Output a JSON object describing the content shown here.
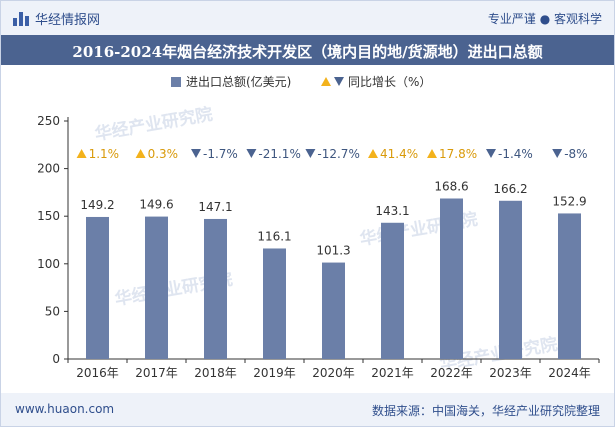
{
  "header": {
    "brand": "华经情报网",
    "tagline": "专业严谨 ● 客观科学"
  },
  "watermark": "华经产业研究院",
  "chart_data": {
    "type": "bar",
    "title": "2016-2024年烟台经济技术开发区（境内目的地/货源地）进出口总额",
    "categories": [
      "2016年",
      "2017年",
      "2018年",
      "2019年",
      "2020年",
      "2021年",
      "2022年",
      "2023年",
      "2024年"
    ],
    "series": [
      {
        "name": "进出口总额(亿美元)",
        "values": [
          149.2,
          149.6,
          147.1,
          116.1,
          101.3,
          143.1,
          168.6,
          166.2,
          152.9
        ]
      }
    ],
    "growth": {
      "name": "同比增长（%）",
      "labels": [
        "1.1%",
        "0.3%",
        "-1.7%",
        "-21.1%",
        "-12.7%",
        "41.4%",
        "17.8%",
        "-1.4%",
        "-8%"
      ],
      "directions": [
        "up",
        "up",
        "down",
        "down",
        "down",
        "up",
        "up",
        "down",
        "down"
      ]
    },
    "yticks": [
      0,
      50,
      100,
      150,
      200,
      250
    ],
    "ylim": [
      0,
      250
    ],
    "grid": false,
    "legend_position": "top-center",
    "colors": {
      "bar": "#6b7fa8",
      "up": "#f3b21c",
      "down": "#4b6390",
      "axis": "#333333"
    }
  },
  "footer": {
    "website": "www.huaon.com",
    "source": "数据来源：中国海关，华经产业研究院整理"
  }
}
